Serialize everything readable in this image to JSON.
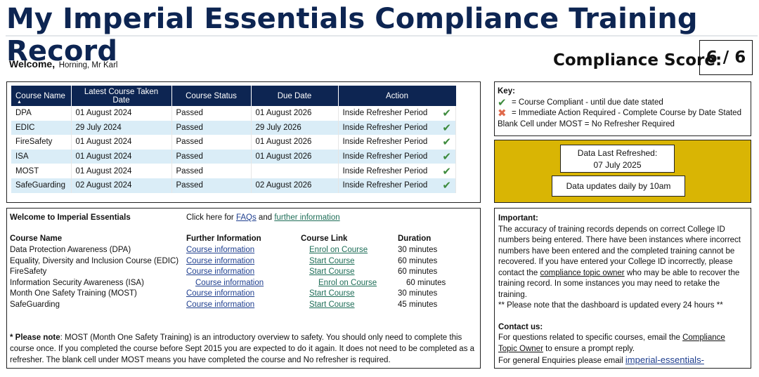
{
  "page_title": "My Imperial Essentials Compliance Training Record",
  "welcome": {
    "label": "Welcome,",
    "name": "Horning, Mr Karl"
  },
  "score": {
    "label": "Compliance Score:",
    "value": "6 / 6"
  },
  "table": {
    "headers": [
      "Course Name",
      "Latest Course Taken Date",
      "Course Status",
      "Due Date",
      "Action"
    ],
    "sort_indicator": "▲",
    "rows": [
      {
        "course": "DPA",
        "taken": "01 August 2024",
        "status": "Passed",
        "due": "01 August 2026",
        "action": "Inside Refresher Period",
        "icon": "check-icon"
      },
      {
        "course": "EDIC",
        "taken": "29 July 2024",
        "status": "Passed",
        "due": "29 July 2026",
        "action": "Inside Refresher Period",
        "icon": "check-icon"
      },
      {
        "course": "FireSafety",
        "taken": "01 August 2024",
        "status": "Passed",
        "due": "01 August 2026",
        "action": "Inside Refresher Period",
        "icon": "check-icon"
      },
      {
        "course": "ISA",
        "taken": "01 August 2024",
        "status": "Passed",
        "due": "01 August 2026",
        "action": "Inside Refresher Period",
        "icon": "check-icon"
      },
      {
        "course": "MOST",
        "taken": "01 August 2024",
        "status": "Passed",
        "due": "",
        "action": "Inside Refresher Period",
        "icon": "check-icon"
      },
      {
        "course": "SafeGuarding",
        "taken": "02 August 2024",
        "status": "Passed",
        "due": "02 August 2026",
        "action": "Inside Refresher Period",
        "icon": "check-icon"
      }
    ]
  },
  "key": {
    "title": "Key:",
    "compliant": "= Course Compliant - until due date stated",
    "action_required": "= Immediate Action Required - Complete Course by Date Stated",
    "blank_cell": "Blank Cell under MOST = No Refresher Required"
  },
  "refresh": {
    "label": "Data Last Refreshed:",
    "date": "07 July 2025",
    "note": "Data updates daily by 10am",
    "panel_color": "#d9b504"
  },
  "info": {
    "welcome": "Welcome to Imperial Essentials",
    "click_here": "Click here for",
    "faqs_link": "FAQs",
    "and": "and",
    "further_link": "further information",
    "col_headers": [
      "Course Name",
      "Further Information",
      "Course Link",
      "Duration"
    ],
    "courses": [
      {
        "name": "Data Protection Awareness (DPA)",
        "info": "Course information",
        "link": "Enrol on Course",
        "duration": "30 minutes"
      },
      {
        "name": "Equality, Diversity and Inclusion Course (EDIC)",
        "info": "Course information",
        "link": "Start Course",
        "duration": "60 minutes"
      },
      {
        "name": "FireSafety",
        "info": "Course information",
        "link": "Start Course",
        "duration": "60 minutes"
      },
      {
        "name": "Information Security Awareness (ISA)",
        "info": "Course information",
        "link": "Enrol on Course",
        "duration": "60 minutes"
      },
      {
        "name": "Month One Safety Training (MOST)",
        "info": "Course information",
        "link": "Start Course",
        "duration": "30 minutes"
      },
      {
        "name": "SafeGuarding",
        "info": "Course information",
        "link": "Start Course",
        "duration": "45 minutes"
      }
    ],
    "note_label": "* Please note",
    "note_text": ": MOST (Month One Safety Training) is an introductory overview to safety. You should only need to complete this course once. If you completed the course before Sept 2015 you are expected to do it again. It does not need to be completed as a refresher. The blank cell under MOST means you have completed the course and No refresher is required."
  },
  "important": {
    "title": "Important:",
    "text_1": "The accuracy of training records depends on correct College ID numbers being entered. There have been instances where incorrect numbers have been entered and the completed training cannot be recovered. If you have entered your College ID incorrectly, please contact the",
    "owner_link": "compliance topic owner",
    "text_2": "who may be able to recover the training record. In some instances you may need to retake the training.",
    "dashboard_note": "** Please note that the dashboard is updated every 24 hours **",
    "contact_title": "Contact us:",
    "contact_1": "For questions related to specific courses, email the",
    "contact_owner_link": "Compliance Topic Owner",
    "contact_2": "to ensure a prompt reply.",
    "general": "For general Enquiries please email",
    "general_link": "imperial-essentials-"
  }
}
